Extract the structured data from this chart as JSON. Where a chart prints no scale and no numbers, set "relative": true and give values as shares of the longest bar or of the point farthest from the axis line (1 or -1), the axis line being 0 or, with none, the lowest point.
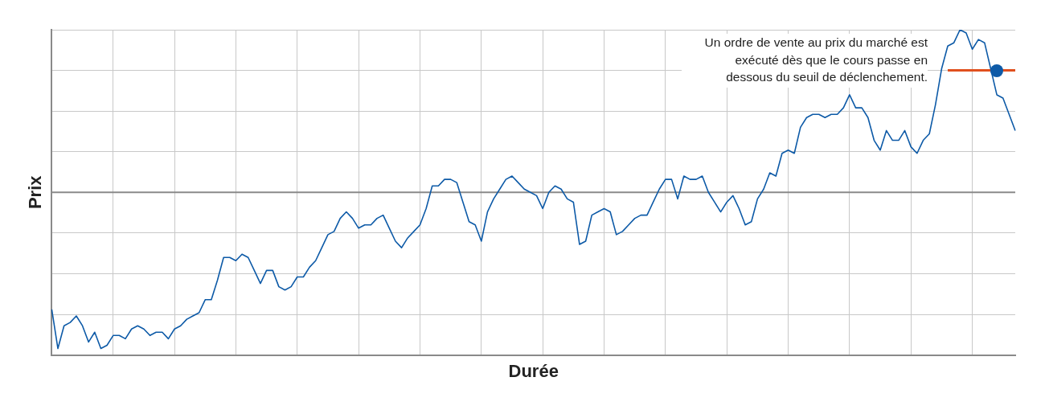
{
  "chart_data": {
    "type": "line",
    "xlabel": "Durée",
    "ylabel": "Prix",
    "relative": true,
    "grid": true,
    "legend": false,
    "categories": [
      null,
      null,
      null,
      null,
      null,
      null,
      null,
      null,
      null,
      null,
      null,
      null,
      null,
      null,
      null,
      null,
      null,
      null,
      null,
      null,
      null,
      null,
      null,
      null,
      null,
      null,
      null,
      null,
      null,
      null,
      null,
      null,
      null,
      null,
      null,
      null,
      null,
      null,
      null,
      null,
      null,
      null,
      null,
      null,
      null,
      null,
      null,
      null,
      null,
      null,
      null,
      null,
      null,
      null,
      null,
      null,
      null,
      null,
      null,
      null,
      null,
      null,
      null,
      null,
      null,
      null,
      null,
      null,
      null,
      null,
      null,
      null,
      null,
      null,
      null,
      null,
      null,
      null,
      null,
      null,
      null,
      null,
      null,
      null,
      null,
      null,
      null,
      null,
      null,
      null,
      null,
      null,
      null,
      null,
      null,
      null,
      null,
      null,
      null,
      null,
      null,
      null,
      null,
      null,
      null,
      null,
      null,
      null,
      null,
      null,
      null,
      null,
      null,
      null,
      null,
      null,
      null,
      null,
      null,
      null,
      null,
      null,
      null,
      null,
      null,
      null,
      null,
      null,
      null,
      null,
      null,
      null,
      null,
      null,
      null,
      null,
      null,
      null,
      null,
      null,
      null,
      null,
      null,
      null,
      null,
      null,
      null,
      null,
      null,
      null,
      null,
      null,
      null,
      null,
      null,
      null,
      null,
      null
    ],
    "series": [
      {
        "color": "#0d5aa7",
        "values": [
          0.14,
          0.02,
          0.09,
          0.1,
          0.12,
          0.09,
          0.04,
          0.07,
          0.02,
          0.03,
          0.06,
          0.06,
          0.05,
          0.08,
          0.09,
          0.08,
          0.06,
          0.07,
          0.07,
          0.05,
          0.08,
          0.09,
          0.11,
          0.12,
          0.13,
          0.17,
          0.17,
          0.23,
          0.3,
          0.3,
          0.29,
          0.31,
          0.3,
          0.26,
          0.22,
          0.26,
          0.26,
          0.21,
          0.2,
          0.21,
          0.24,
          0.24,
          0.27,
          0.29,
          0.33,
          0.37,
          0.38,
          0.42,
          0.44,
          0.42,
          0.39,
          0.4,
          0.4,
          0.42,
          0.43,
          0.39,
          0.35,
          0.33,
          0.36,
          0.38,
          0.4,
          0.45,
          0.52,
          0.52,
          0.54,
          0.54,
          0.53,
          0.47,
          0.41,
          0.4,
          0.35,
          0.44,
          0.48,
          0.51,
          0.54,
          0.55,
          0.53,
          0.51,
          0.5,
          0.49,
          0.45,
          0.5,
          0.52,
          0.51,
          0.48,
          0.47,
          0.34,
          0.35,
          0.43,
          0.44,
          0.45,
          0.44,
          0.37,
          0.38,
          0.4,
          0.42,
          0.43,
          0.43,
          0.47,
          0.51,
          0.54,
          0.54,
          0.48,
          0.55,
          0.54,
          0.54,
          0.55,
          0.5,
          0.47,
          0.44,
          0.47,
          0.49,
          0.45,
          0.4,
          0.41,
          0.48,
          0.51,
          0.56,
          0.55,
          0.62,
          0.63,
          0.62,
          0.7,
          0.73,
          0.74,
          0.74,
          0.73,
          0.74,
          0.74,
          0.76,
          0.8,
          0.76,
          0.76,
          0.73,
          0.66,
          0.63,
          0.69,
          0.66,
          0.66,
          0.69,
          0.64,
          0.62,
          0.66,
          0.68,
          0.77,
          0.88,
          0.95,
          0.96,
          1,
          0.99,
          0.94,
          0.97,
          0.96,
          0.88,
          0.8,
          0.79,
          0.74,
          0.69
        ]
      },
      {
        "color": "#e0501e",
        "values": [
          null,
          null,
          null,
          null,
          null,
          null,
          null,
          null,
          null,
          null,
          null,
          null,
          null,
          null,
          null,
          null,
          null,
          null,
          null,
          null,
          null,
          null,
          null,
          null,
          null,
          null,
          null,
          null,
          null,
          null,
          null,
          null,
          null,
          null,
          null,
          null,
          null,
          null,
          null,
          null,
          null,
          null,
          null,
          null,
          null,
          null,
          null,
          null,
          null,
          null,
          null,
          null,
          null,
          null,
          null,
          null,
          null,
          null,
          null,
          null,
          null,
          null,
          null,
          null,
          null,
          null,
          null,
          null,
          null,
          null,
          null,
          null,
          null,
          null,
          null,
          null,
          null,
          null,
          null,
          null,
          null,
          null,
          null,
          null,
          null,
          null,
          null,
          null,
          null,
          null,
          null,
          null,
          null,
          null,
          null,
          null,
          null,
          null,
          null,
          null,
          null,
          null,
          null,
          null,
          null,
          null,
          null,
          null,
          null,
          null,
          null,
          null,
          null,
          null,
          null,
          null,
          null,
          null,
          null,
          null,
          null,
          null,
          null,
          null,
          null,
          null,
          null,
          null,
          null,
          null,
          null,
          null,
          null,
          null,
          null,
          null,
          null,
          null,
          null,
          null,
          null,
          null,
          null,
          null,
          null,
          null,
          0.875,
          0.875,
          0.875,
          0.875,
          0.875,
          0.875,
          0.875,
          0.875,
          0.875,
          0.875,
          0.875,
          0.875
        ]
      }
    ],
    "ref_lines": [
      {
        "axis": "y",
        "value": 0.5,
        "color": "#8a8a8a"
      }
    ],
    "annotations": [
      "Un ordre de vente au prix du marché est exécuté dès que le cours passe en dessous du seuil de déclenchement."
    ]
  }
}
